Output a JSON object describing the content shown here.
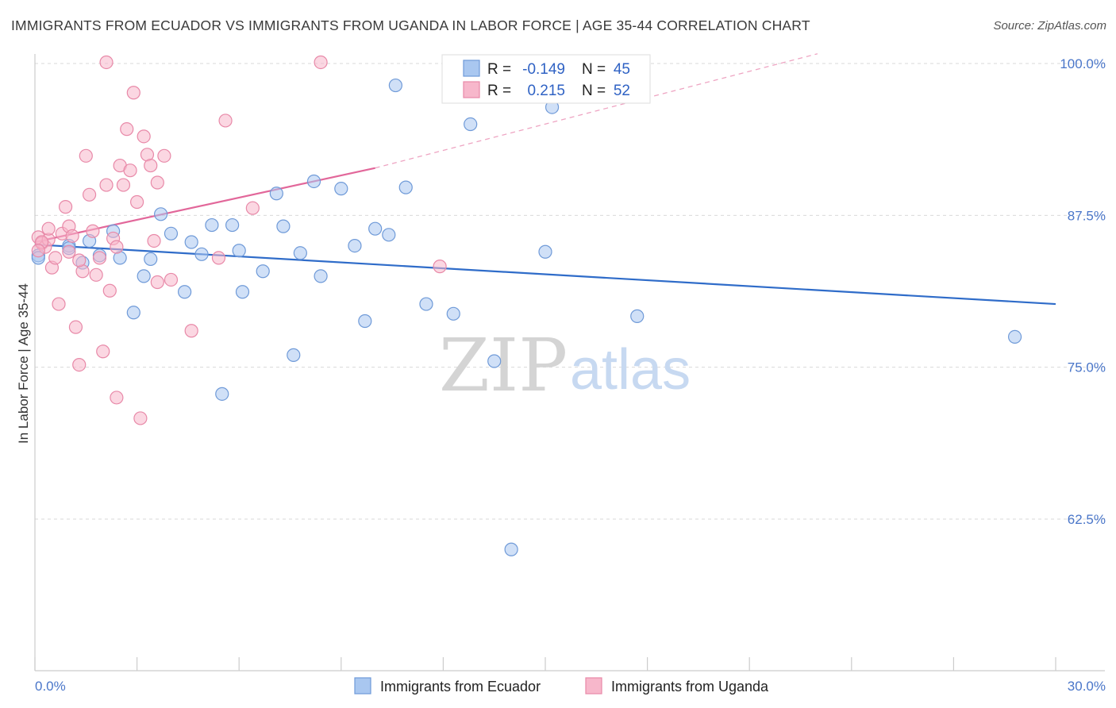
{
  "header": {
    "title": "IMMIGRANTS FROM ECUADOR VS IMMIGRANTS FROM UGANDA IN LABOR FORCE | AGE 35-44 CORRELATION CHART",
    "source": "Source: ZipAtlas.com"
  },
  "watermark": {
    "zip": "ZIP",
    "atlas": "atlas"
  },
  "legend": {
    "ecuador": {
      "r_label": "R =",
      "r_value": "-0.149",
      "n_label": "N =",
      "n_value": "45"
    },
    "uganda": {
      "r_label": "R =",
      "r_value": "0.215",
      "n_label": "N =",
      "n_value": "52"
    }
  },
  "bottom_legend": {
    "ecuador": "Immigrants from Ecuador",
    "uganda": "Immigrants from Uganda"
  },
  "colors": {
    "ecuador_fill": "#a9c7f0",
    "ecuador_stroke": "#6f9ad8",
    "ecuador_line": "#2f6cc9",
    "uganda_fill": "#f7b7cb",
    "uganda_stroke": "#e889a8",
    "uganda_line": "#e2679a",
    "grid": "#d9d9d9",
    "tick_label": "#4a76c9"
  },
  "chart_data": {
    "type": "scatter",
    "title": "IMMIGRANTS FROM ECUADOR VS IMMIGRANTS FROM UGANDA IN LABOR FORCE | AGE 35-44 CORRELATION CHART",
    "xlabel": "",
    "ylabel": "In Labor Force | Age 35-44",
    "xlim": [
      0,
      30
    ],
    "ylim": [
      50,
      101.5
    ],
    "x_tick_labels": [
      "0.0%",
      "30.0%"
    ],
    "y_ticks": [
      62.5,
      75.0,
      87.5,
      100.0
    ],
    "y_tick_labels": [
      "62.5%",
      "75.0%",
      "87.5%",
      "100.0%"
    ],
    "grid": true,
    "series": [
      {
        "name": "Immigrants from Ecuador",
        "points": [
          [
            0.1,
            84.2
          ],
          [
            1.0,
            85.0
          ],
          [
            1.4,
            83.6
          ],
          [
            1.6,
            85.4
          ],
          [
            1.9,
            84.2
          ],
          [
            2.3,
            86.2
          ],
          [
            2.5,
            84.0
          ],
          [
            2.9,
            79.5
          ],
          [
            3.2,
            82.5
          ],
          [
            3.4,
            83.9
          ],
          [
            3.7,
            87.6
          ],
          [
            4.0,
            86.0
          ],
          [
            4.4,
            81.2
          ],
          [
            4.6,
            85.3
          ],
          [
            4.9,
            84.3
          ],
          [
            5.2,
            86.7
          ],
          [
            5.5,
            72.8
          ],
          [
            5.8,
            86.7
          ],
          [
            6.0,
            84.6
          ],
          [
            6.1,
            81.2
          ],
          [
            6.7,
            82.9
          ],
          [
            7.1,
            89.3
          ],
          [
            7.3,
            86.6
          ],
          [
            7.6,
            76.0
          ],
          [
            7.8,
            84.4
          ],
          [
            8.2,
            90.3
          ],
          [
            8.4,
            82.5
          ],
          [
            9.0,
            89.7
          ],
          [
            9.4,
            85.0
          ],
          [
            9.7,
            78.8
          ],
          [
            10.0,
            86.4
          ],
          [
            10.4,
            85.9
          ],
          [
            10.6,
            98.2
          ],
          [
            10.9,
            89.8
          ],
          [
            11.5,
            80.2
          ],
          [
            12.3,
            79.4
          ],
          [
            12.8,
            95.0
          ],
          [
            13.5,
            75.5
          ],
          [
            14.0,
            60.0
          ],
          [
            15.0,
            84.5
          ],
          [
            15.2,
            96.4
          ],
          [
            17.7,
            79.2
          ],
          [
            28.8,
            77.5
          ],
          [
            1.0,
            84.8
          ],
          [
            0.1,
            84.0
          ]
        ]
      },
      {
        "name": "Immigrants from Uganda",
        "points": [
          [
            0.1,
            85.7
          ],
          [
            0.2,
            85.2
          ],
          [
            0.3,
            84.9
          ],
          [
            0.4,
            85.5
          ],
          [
            0.5,
            83.2
          ],
          [
            0.6,
            84.0
          ],
          [
            0.7,
            80.2
          ],
          [
            0.8,
            86.0
          ],
          [
            0.9,
            88.2
          ],
          [
            1.0,
            86.6
          ],
          [
            1.1,
            85.8
          ],
          [
            1.2,
            78.3
          ],
          [
            1.3,
            75.2
          ],
          [
            1.4,
            82.9
          ],
          [
            1.5,
            92.4
          ],
          [
            1.6,
            89.2
          ],
          [
            1.7,
            86.2
          ],
          [
            1.8,
            82.6
          ],
          [
            1.9,
            84.0
          ],
          [
            2.0,
            76.3
          ],
          [
            2.1,
            90.0
          ],
          [
            2.2,
            81.3
          ],
          [
            2.3,
            85.6
          ],
          [
            2.4,
            72.5
          ],
          [
            2.5,
            91.6
          ],
          [
            2.6,
            90.0
          ],
          [
            2.7,
            94.6
          ],
          [
            2.8,
            91.2
          ],
          [
            2.9,
            97.6
          ],
          [
            3.0,
            88.6
          ],
          [
            3.1,
            70.8
          ],
          [
            3.2,
            94.0
          ],
          [
            3.3,
            92.5
          ],
          [
            3.4,
            91.6
          ],
          [
            3.5,
            85.4
          ],
          [
            3.6,
            90.2
          ],
          [
            3.8,
            92.4
          ],
          [
            4.0,
            82.2
          ],
          [
            4.6,
            78.0
          ],
          [
            5.4,
            84.0
          ],
          [
            5.6,
            95.3
          ],
          [
            6.4,
            88.1
          ],
          [
            0.2,
            85.3
          ],
          [
            8.4,
            100.1
          ],
          [
            11.9,
            83.3
          ],
          [
            0.1,
            84.6
          ],
          [
            1.0,
            84.5
          ],
          [
            2.4,
            84.9
          ],
          [
            3.6,
            82.0
          ],
          [
            1.3,
            83.8
          ],
          [
            2.1,
            100.1
          ],
          [
            0.4,
            86.4
          ]
        ]
      }
    ],
    "trend_lines": [
      {
        "series": "Immigrants from Ecuador",
        "x": [
          0,
          30
        ],
        "y": [
          85.1,
          80.2
        ],
        "style": "solid"
      },
      {
        "series": "Immigrants from Uganda",
        "x": [
          0,
          10
        ],
        "y": [
          85.3,
          91.4
        ],
        "style": "solid"
      },
      {
        "series": "Immigrants from Uganda",
        "x": [
          10,
          23
        ],
        "y": [
          91.4,
          100.8
        ],
        "style": "dashed"
      }
    ]
  }
}
